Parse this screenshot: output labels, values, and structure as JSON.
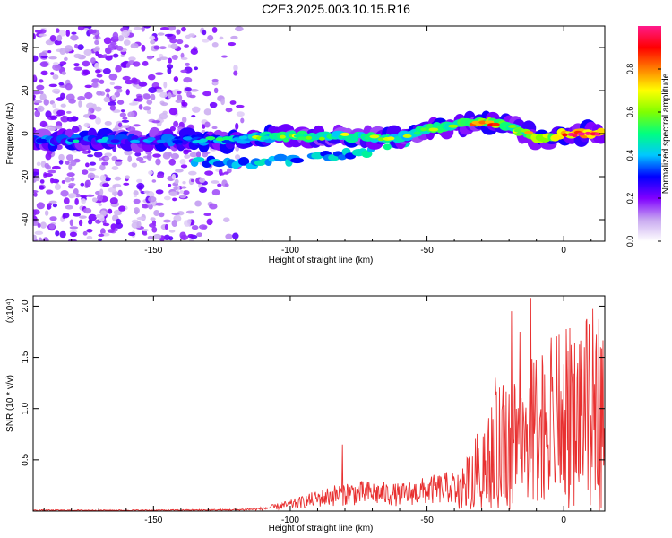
{
  "title": "C2E3.2025.003.10.15.R16",
  "chart_data": [
    {
      "type": "heatmap",
      "xlabel": "Height of straight line (km)",
      "ylabel": "Frequency (Hz)",
      "xlim": [
        -194,
        15
      ],
      "ylim": [
        -50,
        50
      ],
      "xticks": [
        -150,
        -100,
        -50,
        0
      ],
      "yticks": [
        -40,
        -20,
        0,
        20,
        40
      ],
      "colorbar": {
        "label": "Normalized spectral amplitude",
        "range": [
          0,
          1
        ],
        "ticks": [
          "0.0",
          "0.2",
          "0.4",
          "0.6",
          "0.8"
        ],
        "colors": [
          "#ffffff",
          "#c8a8f0",
          "#8000ff",
          "#0000ff",
          "#00c8ff",
          "#00ff80",
          "#80ff00",
          "#ffff00",
          "#ff8000",
          "#ff0000",
          "#ff1a8c"
        ]
      },
      "ridge": [
        {
          "x": -194,
          "y": -3,
          "amp": 0.35
        },
        {
          "x": -150,
          "y": -3,
          "amp": 0.3
        },
        {
          "x": -130,
          "y": -3,
          "amp": 0.35
        },
        {
          "x": -120,
          "y": -3,
          "amp": 0.45
        },
        {
          "x": -110,
          "y": -2,
          "amp": 0.5
        },
        {
          "x": -100,
          "y": -1,
          "amp": 0.55
        },
        {
          "x": -90,
          "y": -2,
          "amp": 0.55
        },
        {
          "x": -80,
          "y": -1,
          "amp": 0.55
        },
        {
          "x": -70,
          "y": -2,
          "amp": 0.55
        },
        {
          "x": -60,
          "y": -2,
          "amp": 0.5
        },
        {
          "x": -50,
          "y": 2,
          "amp": 0.55
        },
        {
          "x": -40,
          "y": 4,
          "amp": 0.6
        },
        {
          "x": -30,
          "y": 5,
          "amp": 0.7
        },
        {
          "x": -25,
          "y": 5,
          "amp": 0.75
        },
        {
          "x": -20,
          "y": 3,
          "amp": 0.65
        },
        {
          "x": -15,
          "y": 1,
          "amp": 0.6
        },
        {
          "x": -10,
          "y": -2,
          "amp": 0.75
        },
        {
          "x": -5,
          "y": -2,
          "amp": 0.75
        },
        {
          "x": 0,
          "y": 0,
          "amp": 0.9
        },
        {
          "x": 7,
          "y": 0,
          "amp": 0.95
        },
        {
          "x": 14,
          "y": 0,
          "amp": 0.95
        }
      ],
      "secondary_ridge": [
        {
          "x": -135,
          "y": -13
        },
        {
          "x": -115,
          "y": -14
        },
        {
          "x": -100,
          "y": -12
        },
        {
          "x": -80,
          "y": -10
        },
        {
          "x": -70,
          "y": -8
        },
        {
          "x": -55,
          "y": -3
        },
        {
          "x": -50,
          "y": 0
        }
      ],
      "noise_region": {
        "x_from": -194,
        "x_to": -115,
        "y_from": -50,
        "y_to": 50
      }
    },
    {
      "type": "line",
      "xlabel": "Height of straight line (km)",
      "ylabel": "SNR (10 * v/v)",
      "y_multiplier": "(x10⁴)",
      "xlim": [
        -194,
        15
      ],
      "ylim": [
        0,
        2.1
      ],
      "xticks": [
        -150,
        -100,
        -50,
        0
      ],
      "yticks": [
        "0.5",
        "1.0",
        "1.5",
        "2.0"
      ],
      "color": "#e83030",
      "envelope": {
        "x": [
          -194,
          -150,
          -120,
          -110,
          -100,
          -90,
          -80,
          -70,
          -60,
          -50,
          -40,
          -35,
          -30,
          -25,
          -20,
          -15,
          -10,
          -5,
          0,
          5,
          10,
          15
        ],
        "y": [
          0.01,
          0.01,
          0.015,
          0.03,
          0.08,
          0.15,
          0.22,
          0.22,
          0.2,
          0.25,
          0.3,
          0.4,
          0.65,
          0.85,
          1.05,
          1.05,
          1.15,
          1.25,
          1.32,
          1.35,
          1.45,
          1.55
        ]
      },
      "peaks": [
        {
          "x": -81,
          "y": 0.65
        },
        {
          "x": -19,
          "y": 1.95
        },
        {
          "x": -12,
          "y": 2.08
        },
        {
          "x": -16,
          "y": 1.75
        },
        {
          "x": 12,
          "y": 1.72
        },
        {
          "x": -25,
          "y": 1.3
        }
      ]
    }
  ]
}
